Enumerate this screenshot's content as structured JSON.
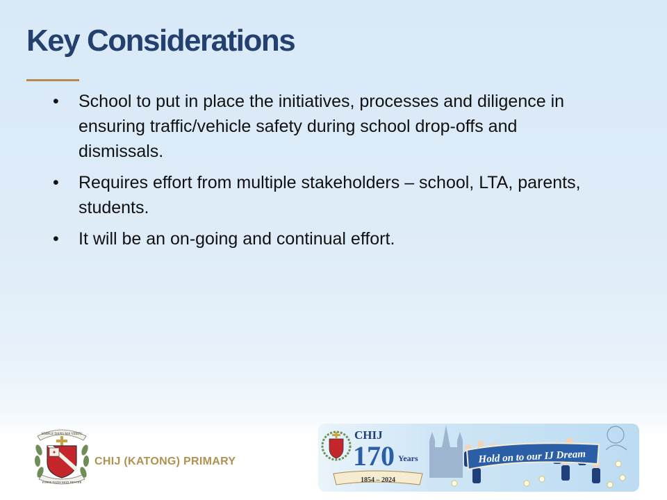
{
  "slide": {
    "title": "Key Considerations",
    "bullets": [
      {
        "marker": "•",
        "text": "School to put in place the initiatives, processes and diligence in ensuring traffic/vehicle safety during school drop-offs and dismissals."
      },
      {
        "marker": "•",
        "text": "Requires effort from multiple stakeholders – school, LTA, parents, students."
      },
      {
        "marker": "•",
        "text": "It will be an on-going and continual effort."
      }
    ]
  },
  "footer": {
    "school_name": "CHIJ (KATONG) PRIMARY",
    "crest_motto_top": "SIMPLE DANS MA VERTU",
    "crest_motto_bottom": "FORTE DANS MON DEVOIR",
    "banner_chij": "CHIJ",
    "banner_number": "170",
    "banner_years_word": "Years",
    "banner_years_range": "1854 – 2024",
    "banner_slogan": "Hold on to our IJ Dream"
  },
  "colors": {
    "title": "#24406e",
    "accent_gold": "#b58a52",
    "school_name": "#b1914f",
    "banner_blue": "#2a5fa8"
  }
}
